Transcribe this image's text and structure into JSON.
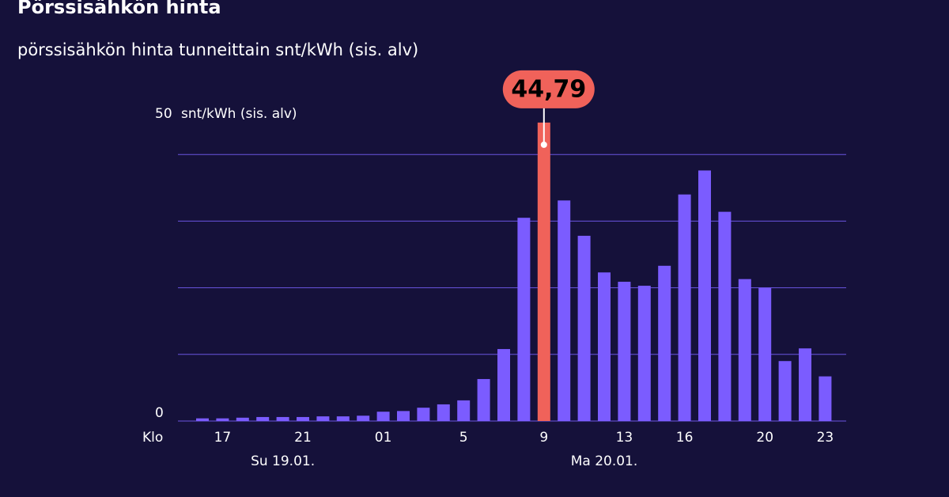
{
  "chart_data": {
    "type": "bar",
    "title": "Pörssisähkön hinta",
    "subtitle": "pörssisähkön hinta tunneittain snt/kWh (sis. alv)",
    "y_unit": "snt/kWh (sis. alv)",
    "x_prefix": "Klo",
    "categories": [
      null,
      "17",
      null,
      null,
      null,
      "21",
      null,
      null,
      null,
      "01",
      null,
      null,
      null,
      "5",
      null,
      null,
      null,
      "9",
      null,
      null,
      null,
      "13",
      null,
      null,
      "16",
      null,
      null,
      null,
      "20",
      null,
      null,
      "23"
    ],
    "values": [
      0.4,
      0.4,
      0.5,
      0.6,
      0.6,
      0.6,
      0.7,
      0.7,
      0.8,
      1.4,
      1.5,
      2.0,
      2.5,
      3.1,
      6.3,
      10.8,
      30.5,
      44.79,
      33.1,
      27.8,
      22.3,
      20.9,
      20.3,
      23.3,
      34.0,
      37.6,
      31.4,
      21.3,
      20.0,
      9.0,
      10.9,
      6.7
    ],
    "value_labels": [
      null,
      null,
      null,
      null,
      null,
      null,
      null,
      null,
      null,
      null,
      null,
      null,
      null,
      null,
      null,
      null,
      null,
      "44,79",
      null,
      null,
      null,
      null,
      null,
      null,
      null,
      null,
      null,
      null,
      null,
      null,
      null,
      null
    ],
    "x_groups": [
      {
        "label": "Su 19.01.",
        "category": 4
      },
      {
        "label": "Ma 20.01.",
        "category": 20
      }
    ],
    "color": "#7b5cff",
    "highlight": 17,
    "highlight_color": "#f0625a",
    "ylim": [
      0,
      50
    ],
    "yticks": [
      0,
      50
    ],
    "grid": [
      10,
      20,
      30,
      40
    ]
  }
}
